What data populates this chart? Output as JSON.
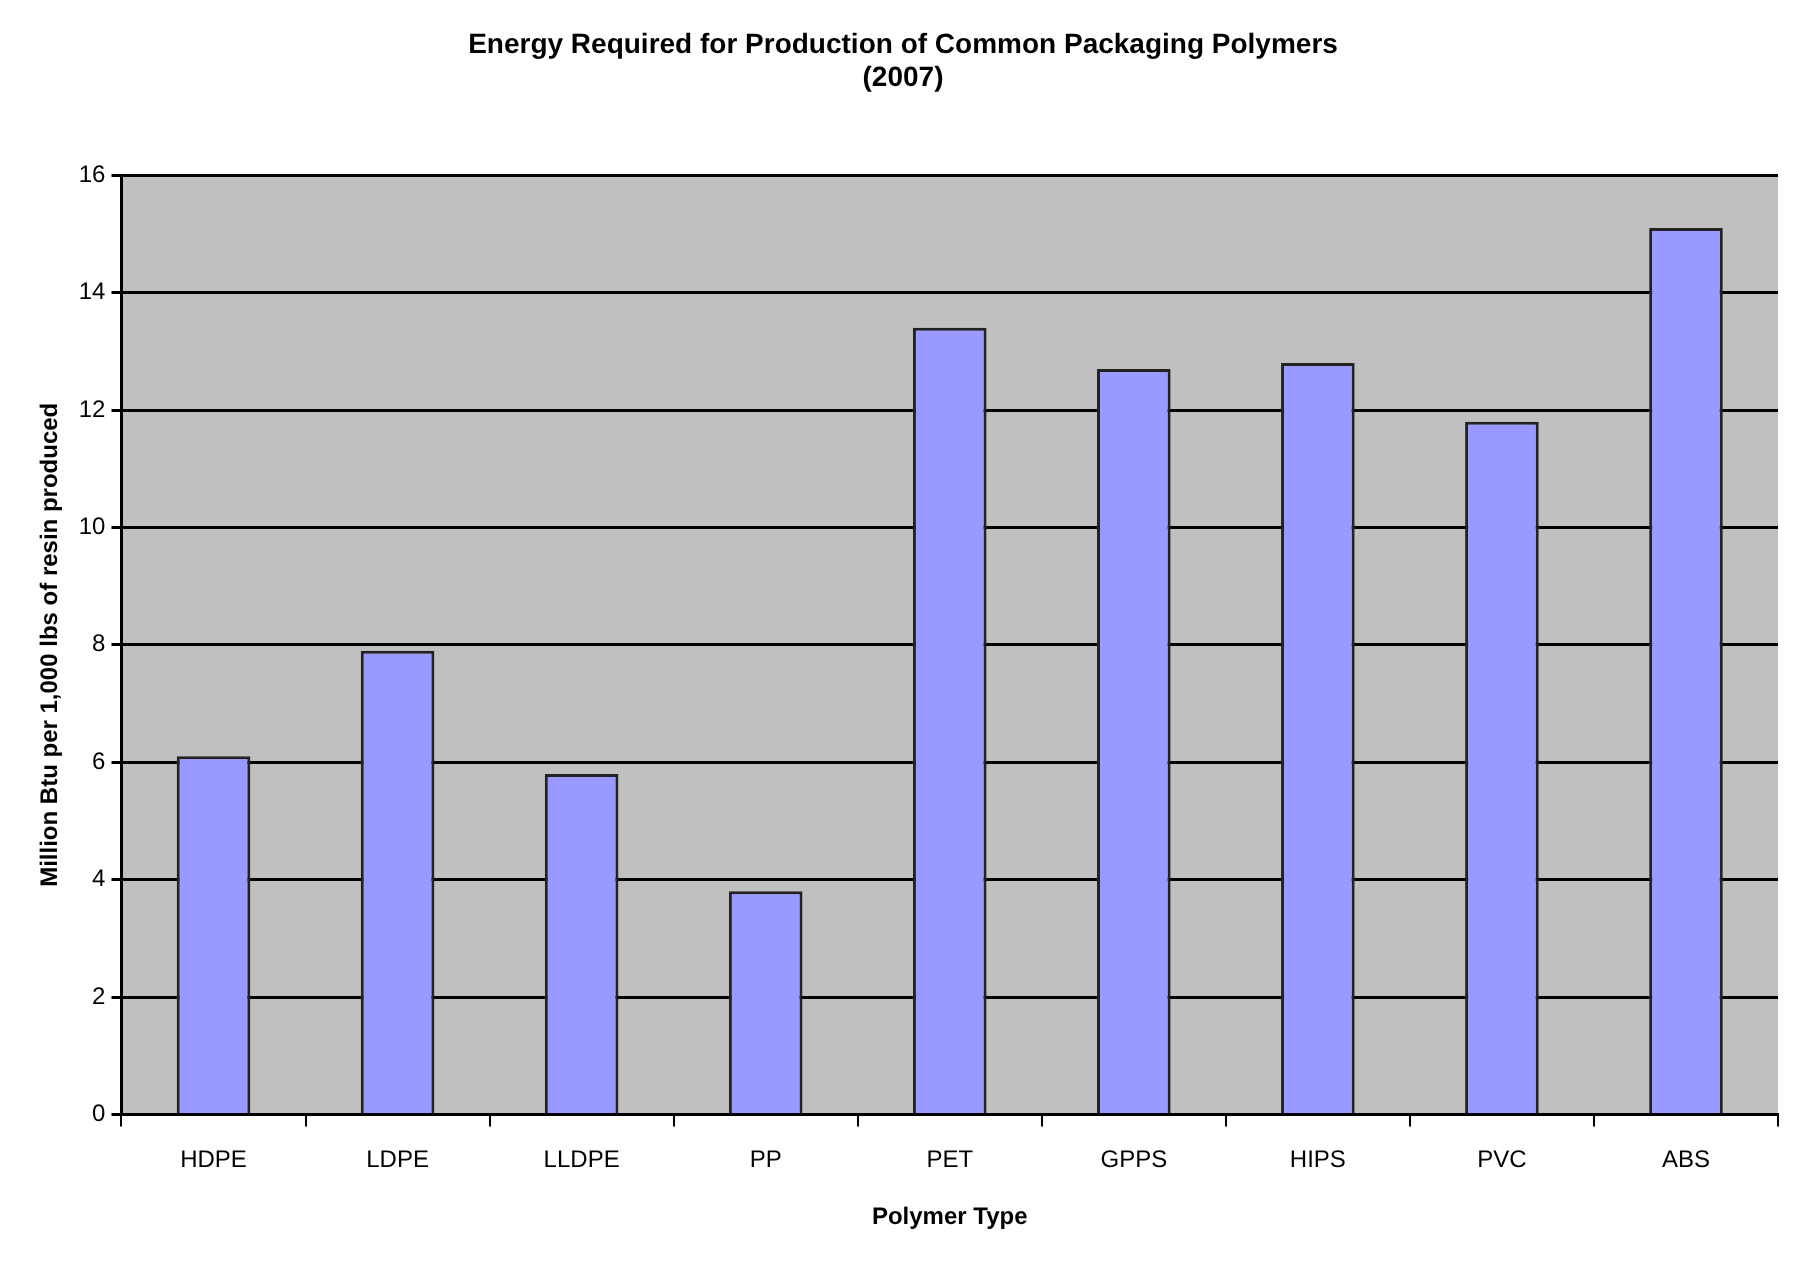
{
  "chart_data": {
    "type": "bar",
    "title": "Energy Required for Production of Common Packaging Polymers",
    "subtitle": "(2007)",
    "xlabel": "Polymer Type",
    "ylabel": "Million Btu per 1,000 lbs of resin produced",
    "categories": [
      "HDPE",
      "LDPE",
      "LLDPE",
      "PP",
      "PET",
      "GPPS",
      "HIPS",
      "PVC",
      "ABS"
    ],
    "values": [
      6.1,
      7.9,
      5.8,
      3.8,
      13.4,
      12.7,
      12.8,
      11.8,
      15.1
    ],
    "color": "#9999ff",
    "ylim": [
      0,
      16
    ],
    "yticks": [
      0,
      2,
      4,
      6,
      8,
      10,
      12,
      14,
      16
    ],
    "grid": "y",
    "legend": false
  }
}
